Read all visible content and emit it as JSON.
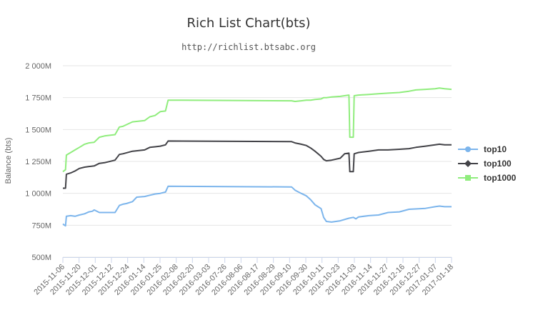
{
  "chart_data": {
    "type": "line",
    "title": "Rich List Chart(bts)",
    "subtitle": "http://richlist.btsabc.org",
    "ylabel": "Balance (bts)",
    "xlabel": "",
    "ylim": [
      500,
      2000
    ],
    "y_unit": "M",
    "y_ticks": [
      "500M",
      "750M",
      "1 000M",
      "1 250M",
      "1 500M",
      "1 750M",
      "2 000M"
    ],
    "y_tick_values": [
      500,
      750,
      1000,
      1250,
      1500,
      1750,
      2000
    ],
    "x_start": "2015-11-06",
    "x_end": "2017-01-26",
    "x_ticks": [
      "2015-11-06",
      "2015-11-20",
      "2015-12-01",
      "2015-12-12",
      "2015-12-24",
      "2016-01-14",
      "2016-01-25",
      "2016-02-08",
      "2016-02-20",
      "2016-03-03",
      "2016-07-26",
      "2016-08-06",
      "2016-08-17",
      "2016-08-29",
      "2016-09-10",
      "2016-09-30",
      "2016-10-11",
      "2016-10-23",
      "2016-11-03",
      "2016-11-14",
      "2016-11-27",
      "2016-12-16",
      "2016-12-27",
      "2017-01-07",
      "2017-01-18"
    ],
    "grid": true,
    "legend_position": "right",
    "series": [
      {
        "name": "top10",
        "color": "#7cb5ec",
        "marker": "circle",
        "x": [
          "2015-11-06",
          "2015-11-08",
          "2015-11-09",
          "2015-11-10",
          "2015-11-15",
          "2015-11-20",
          "2015-11-25",
          "2015-12-01",
          "2015-12-06",
          "2015-12-10",
          "2015-12-12",
          "2015-12-18",
          "2015-12-24",
          "2016-01-05",
          "2016-01-10",
          "2016-01-14",
          "2016-01-18",
          "2016-01-25",
          "2016-01-30",
          "2016-02-08",
          "2016-02-14",
          "2016-02-20",
          "2016-02-26",
          "2016-03-03",
          "2016-03-06",
          "2016-07-26",
          "2016-07-30",
          "2016-08-06",
          "2016-08-12",
          "2016-08-17",
          "2016-08-22",
          "2016-08-29",
          "2016-09-01",
          "2016-09-04",
          "2016-09-10",
          "2016-09-20",
          "2016-09-30",
          "2016-10-05",
          "2016-10-08",
          "2016-10-11",
          "2016-10-23",
          "2016-11-03",
          "2016-11-14",
          "2016-11-27",
          "2016-12-08",
          "2016-12-16",
          "2016-12-27",
          "2017-01-07",
          "2017-01-12",
          "2017-01-18",
          "2017-01-26"
        ],
        "values": [
          760,
          750,
          745,
          820,
          825,
          820,
          830,
          840,
          855,
          860,
          870,
          850,
          850,
          850,
          905,
          915,
          920,
          935,
          970,
          975,
          985,
          995,
          1000,
          1010,
          1055,
          1050,
          1025,
          1000,
          980,
          950,
          910,
          880,
          810,
          780,
          775,
          785,
          805,
          812,
          800,
          815,
          825,
          830,
          850,
          855,
          875,
          878,
          882,
          895,
          900,
          895,
          895
        ]
      },
      {
        "name": "top100",
        "color": "#434348",
        "marker": "diamond",
        "x": [
          "2015-11-06",
          "2015-11-09",
          "2015-11-10",
          "2015-11-15",
          "2015-11-20",
          "2015-11-25",
          "2015-12-01",
          "2015-12-06",
          "2015-12-12",
          "2015-12-18",
          "2015-12-24",
          "2016-01-05",
          "2016-01-10",
          "2016-01-14",
          "2016-01-25",
          "2016-02-08",
          "2016-02-14",
          "2016-02-20",
          "2016-02-26",
          "2016-03-03",
          "2016-03-06",
          "2016-07-26",
          "2016-07-30",
          "2016-08-06",
          "2016-08-12",
          "2016-08-17",
          "2016-08-22",
          "2016-08-29",
          "2016-09-01",
          "2016-09-04",
          "2016-09-10",
          "2016-09-20",
          "2016-09-25",
          "2016-09-30",
          "2016-10-01",
          "2016-10-05",
          "2016-10-06",
          "2016-10-11",
          "2016-10-23",
          "2016-11-03",
          "2016-11-14",
          "2016-11-27",
          "2016-12-08",
          "2016-12-16",
          "2016-12-27",
          "2017-01-07",
          "2017-01-12",
          "2017-01-18",
          "2017-01-26"
        ],
        "values": [
          1040,
          1040,
          1150,
          1160,
          1175,
          1195,
          1205,
          1210,
          1215,
          1235,
          1240,
          1260,
          1305,
          1310,
          1330,
          1340,
          1360,
          1365,
          1370,
          1380,
          1410,
          1405,
          1395,
          1385,
          1375,
          1355,
          1330,
          1290,
          1265,
          1255,
          1260,
          1275,
          1310,
          1315,
          1170,
          1170,
          1310,
          1320,
          1330,
          1340,
          1340,
          1345,
          1350,
          1360,
          1370,
          1380,
          1385,
          1380,
          1380
        ]
      },
      {
        "name": "top1000",
        "color": "#90ed7d",
        "marker": "square",
        "x": [
          "2015-11-06",
          "2015-11-09",
          "2015-11-10",
          "2015-11-15",
          "2015-11-20",
          "2015-11-25",
          "2015-12-01",
          "2015-12-06",
          "2015-12-12",
          "2015-12-18",
          "2015-12-24",
          "2016-01-05",
          "2016-01-10",
          "2016-01-14",
          "2016-01-25",
          "2016-02-08",
          "2016-02-14",
          "2016-02-20",
          "2016-02-26",
          "2016-03-03",
          "2016-03-06",
          "2016-07-26",
          "2016-07-30",
          "2016-08-06",
          "2016-08-12",
          "2016-08-17",
          "2016-08-22",
          "2016-08-29",
          "2016-09-01",
          "2016-09-04",
          "2016-09-10",
          "2016-09-20",
          "2016-09-25",
          "2016-09-30",
          "2016-10-01",
          "2016-10-05",
          "2016-10-06",
          "2016-10-11",
          "2016-10-23",
          "2016-11-03",
          "2016-11-14",
          "2016-11-27",
          "2016-12-08",
          "2016-12-16",
          "2016-12-27",
          "2017-01-07",
          "2017-01-12",
          "2017-01-18",
          "2017-01-26"
        ],
        "values": [
          1170,
          1185,
          1300,
          1320,
          1340,
          1360,
          1385,
          1395,
          1400,
          1440,
          1450,
          1460,
          1520,
          1525,
          1560,
          1570,
          1600,
          1610,
          1640,
          1645,
          1730,
          1725,
          1720,
          1725,
          1730,
          1730,
          1735,
          1740,
          1750,
          1750,
          1755,
          1760,
          1765,
          1770,
          1440,
          1440,
          1765,
          1770,
          1775,
          1780,
          1785,
          1790,
          1800,
          1810,
          1815,
          1820,
          1825,
          1820,
          1815
        ]
      }
    ]
  }
}
